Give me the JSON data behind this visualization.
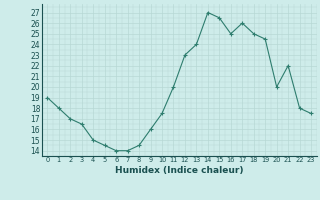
{
  "x": [
    0,
    1,
    2,
    3,
    4,
    5,
    6,
    7,
    8,
    9,
    10,
    11,
    12,
    13,
    14,
    15,
    16,
    17,
    18,
    19,
    20,
    21,
    22,
    23
  ],
  "y": [
    19,
    18,
    17,
    16.5,
    15,
    14.5,
    14,
    14,
    14.5,
    16,
    17.5,
    20,
    23,
    24,
    27,
    26.5,
    25,
    26,
    25,
    24.5,
    20,
    22,
    18,
    17.5
  ],
  "line_color": "#2e7d6e",
  "marker_color": "#2e7d6e",
  "bg_color": "#ceecea",
  "grid_color_major": "#b8d8d5",
  "grid_color_minor": "#d8eeec",
  "xlabel": "Humidex (Indice chaleur)",
  "ylabel_ticks": [
    14,
    15,
    16,
    17,
    18,
    19,
    20,
    21,
    22,
    23,
    24,
    25,
    26,
    27
  ],
  "ylim": [
    13.5,
    27.8
  ],
  "xlim": [
    -0.5,
    23.5
  ]
}
